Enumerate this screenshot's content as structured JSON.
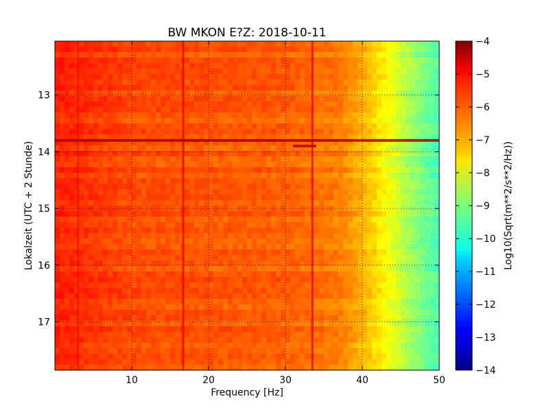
{
  "chart_data": {
    "type": "heatmap",
    "title": "BW MKON E?Z: 2018-10-11",
    "xlabel": "Frequency [Hz]",
    "ylabel": "Lokalzeit (UTC + 2 Stunde)",
    "colorbar_label": "Log10(Sqrt(m**2/s**2/Hz))",
    "xlim": [
      0,
      50
    ],
    "ylim": [
      12.05,
      17.85
    ],
    "y_inverted": true,
    "x_ticks": [
      10,
      20,
      30,
      40,
      50
    ],
    "x_tick_labels": [
      "10",
      "20",
      "30",
      "40",
      "50"
    ],
    "y_ticks": [
      13,
      14,
      15,
      16,
      17
    ],
    "y_tick_labels": [
      "13",
      "14",
      "15",
      "16",
      "17"
    ],
    "grid": true,
    "colormap": "jet",
    "clim": [
      -14,
      -4
    ],
    "colorbar_ticks": [
      -4,
      -5,
      -6,
      -7,
      -8,
      -9,
      -10,
      -11,
      -12,
      -13,
      -14
    ],
    "colorbar_tick_labels": [
      "−4",
      "−5",
      "−6",
      "−7",
      "−8",
      "−9",
      "−10",
      "−11",
      "−12",
      "−13",
      "−14"
    ],
    "frequency_profile": {
      "freq_hz": [
        0,
        10,
        20,
        30,
        37,
        40,
        42,
        44,
        46,
        48,
        50
      ],
      "log_amplitude": [
        -5.6,
        -6.0,
        -6.1,
        -6.2,
        -6.5,
        -7.0,
        -7.5,
        -8.0,
        -8.6,
        -9.1,
        -9.5
      ]
    },
    "spectral_lines_hz": [
      16.7,
      33.5,
      3.0
    ],
    "transient_events": [
      {
        "time_h": 13.8,
        "freq_hz": [
          0,
          50
        ],
        "log_amplitude": -4.4
      },
      {
        "time_h": 13.9,
        "freq_hz": [
          31,
          34
        ],
        "log_amplitude": -4.6
      }
    ]
  }
}
